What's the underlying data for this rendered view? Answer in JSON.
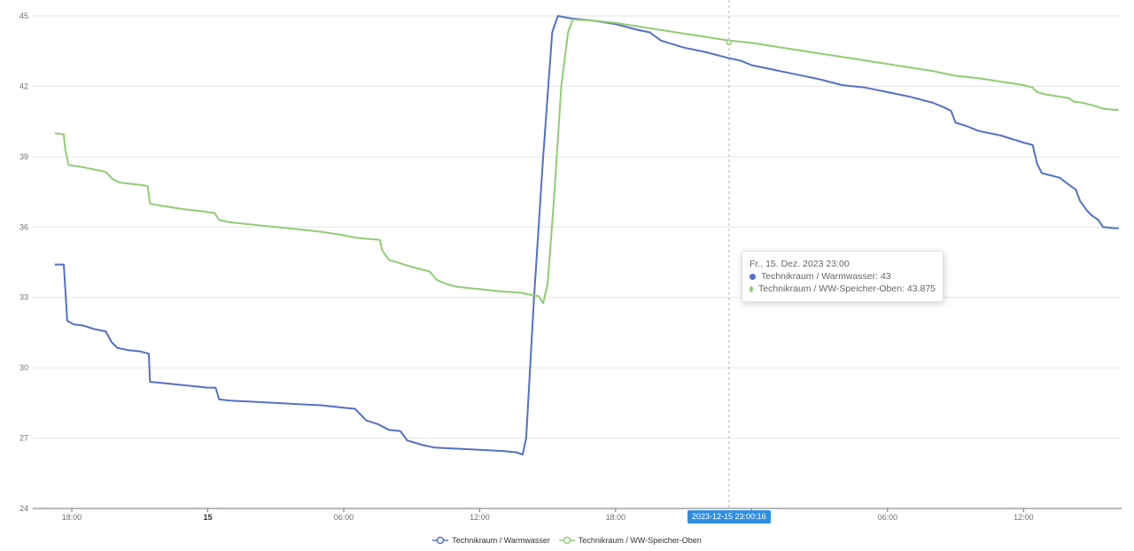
{
  "chart_data": {
    "type": "line",
    "ylim": [
      24,
      45
    ],
    "yticks": [
      24,
      27,
      30,
      33,
      36,
      39,
      42,
      45
    ],
    "xticks": [
      {
        "label": "18:00",
        "bold": false
      },
      {
        "label": "15",
        "bold": true
      },
      {
        "label": "06:00",
        "bold": false
      },
      {
        "label": "12:00",
        "bold": false
      },
      {
        "label": "18:00",
        "bold": false
      },
      {
        "label": "",
        "bold": false
      },
      {
        "label": "06:00",
        "bold": false
      },
      {
        "label": "12:00",
        "bold": false
      }
    ],
    "x_unit": "hours since 2023-12-14 18:00",
    "xlim": [
      -0.75,
      45.5
    ],
    "grid": true,
    "legend_position": "bottom-center",
    "series": [
      {
        "name": "Technikraum / Warmwasser",
        "color": "#5470c6",
        "points": [
          [
            -0.75,
            34.4
          ],
          [
            -0.35,
            34.4
          ],
          [
            -0.3,
            33.6
          ],
          [
            -0.2,
            32.0
          ],
          [
            0.1,
            31.85
          ],
          [
            0.5,
            31.8
          ],
          [
            1.0,
            31.65
          ],
          [
            1.5,
            31.55
          ],
          [
            1.75,
            31.1
          ],
          [
            2.0,
            30.85
          ],
          [
            2.5,
            30.75
          ],
          [
            3.0,
            30.7
          ],
          [
            3.4,
            30.6
          ],
          [
            3.45,
            29.4
          ],
          [
            4.0,
            29.35
          ],
          [
            5.0,
            29.25
          ],
          [
            5.5,
            29.2
          ],
          [
            6.0,
            29.15
          ],
          [
            6.35,
            29.15
          ],
          [
            6.5,
            28.65
          ],
          [
            7.0,
            28.6
          ],
          [
            8.0,
            28.55
          ],
          [
            9.0,
            28.5
          ],
          [
            10.0,
            28.45
          ],
          [
            11.0,
            28.4
          ],
          [
            12.0,
            28.3
          ],
          [
            12.5,
            28.25
          ],
          [
            12.7,
            28.05
          ],
          [
            13.0,
            27.75
          ],
          [
            13.5,
            27.6
          ],
          [
            14.0,
            27.35
          ],
          [
            14.5,
            27.3
          ],
          [
            14.8,
            26.9
          ],
          [
            15.5,
            26.7
          ],
          [
            16.0,
            26.6
          ],
          [
            17.0,
            26.55
          ],
          [
            18.0,
            26.5
          ],
          [
            19.0,
            26.45
          ],
          [
            19.6,
            26.4
          ],
          [
            19.9,
            26.3
          ],
          [
            20.05,
            27.0
          ],
          [
            20.4,
            33.0
          ],
          [
            20.8,
            39.0
          ],
          [
            21.2,
            44.3
          ],
          [
            21.45,
            45.0
          ],
          [
            22.0,
            44.9
          ],
          [
            23.0,
            44.8
          ],
          [
            24.0,
            44.65
          ],
          [
            25.0,
            44.4
          ],
          [
            25.5,
            44.3
          ],
          [
            26.0,
            43.95
          ],
          [
            27.0,
            43.65
          ],
          [
            28.0,
            43.45
          ],
          [
            29.0,
            43.2
          ],
          [
            29.5,
            43.1
          ],
          [
            30.0,
            42.9
          ],
          [
            31.0,
            42.7
          ],
          [
            32.0,
            42.5
          ],
          [
            33.0,
            42.3
          ],
          [
            34.0,
            42.05
          ],
          [
            35.0,
            41.95
          ],
          [
            36.0,
            41.75
          ],
          [
            37.0,
            41.55
          ],
          [
            38.0,
            41.3
          ],
          [
            38.5,
            41.1
          ],
          [
            38.8,
            40.95
          ],
          [
            39.0,
            40.45
          ],
          [
            39.5,
            40.3
          ],
          [
            40.0,
            40.1
          ],
          [
            41.0,
            39.9
          ],
          [
            41.5,
            39.75
          ],
          [
            42.0,
            39.6
          ],
          [
            42.4,
            39.5
          ],
          [
            42.6,
            38.7
          ],
          [
            42.8,
            38.3
          ],
          [
            43.2,
            38.2
          ],
          [
            43.6,
            38.1
          ],
          [
            44.0,
            37.8
          ],
          [
            44.3,
            37.6
          ],
          [
            44.5,
            37.1
          ],
          [
            44.8,
            36.7
          ],
          [
            45.0,
            36.5
          ],
          [
            45.3,
            36.3
          ],
          [
            45.5,
            36.0
          ],
          [
            46.0,
            35.95
          ],
          [
            46.2,
            35.95
          ]
        ]
      },
      {
        "name": "Technikraum / WW-Speicher-Oben",
        "color": "#91cc75",
        "points": [
          [
            -0.75,
            40.0
          ],
          [
            -0.35,
            39.95
          ],
          [
            -0.3,
            39.4
          ],
          [
            -0.15,
            38.65
          ],
          [
            0.5,
            38.55
          ],
          [
            1.0,
            38.45
          ],
          [
            1.5,
            38.35
          ],
          [
            1.8,
            38.05
          ],
          [
            2.1,
            37.9
          ],
          [
            2.5,
            37.85
          ],
          [
            3.0,
            37.8
          ],
          [
            3.35,
            37.75
          ],
          [
            3.45,
            37.0
          ],
          [
            4.0,
            36.9
          ],
          [
            5.0,
            36.75
          ],
          [
            5.5,
            36.7
          ],
          [
            6.3,
            36.6
          ],
          [
            6.5,
            36.3
          ],
          [
            7.0,
            36.2
          ],
          [
            8.0,
            36.1
          ],
          [
            9.0,
            36.0
          ],
          [
            10.0,
            35.9
          ],
          [
            11.0,
            35.8
          ],
          [
            12.0,
            35.65
          ],
          [
            12.5,
            35.55
          ],
          [
            13.0,
            35.5
          ],
          [
            13.6,
            35.45
          ],
          [
            13.7,
            35.0
          ],
          [
            14.0,
            34.6
          ],
          [
            14.5,
            34.45
          ],
          [
            15.0,
            34.3
          ],
          [
            15.8,
            34.1
          ],
          [
            16.1,
            33.75
          ],
          [
            16.6,
            33.55
          ],
          [
            17.0,
            33.45
          ],
          [
            18.0,
            33.35
          ],
          [
            19.0,
            33.25
          ],
          [
            19.8,
            33.2
          ],
          [
            20.3,
            33.1
          ],
          [
            20.6,
            33.05
          ],
          [
            20.8,
            32.75
          ],
          [
            21.0,
            33.6
          ],
          [
            21.3,
            37.5
          ],
          [
            21.6,
            42.0
          ],
          [
            21.9,
            44.3
          ],
          [
            22.1,
            44.85
          ],
          [
            23.0,
            44.8
          ],
          [
            24.0,
            44.7
          ],
          [
            25.0,
            44.55
          ],
          [
            26.0,
            44.4
          ],
          [
            27.0,
            44.25
          ],
          [
            28.0,
            44.1
          ],
          [
            29.0,
            43.95
          ],
          [
            30.0,
            43.85
          ],
          [
            31.0,
            43.7
          ],
          [
            32.0,
            43.55
          ],
          [
            33.0,
            43.4
          ],
          [
            34.0,
            43.25
          ],
          [
            35.0,
            43.1
          ],
          [
            36.0,
            42.95
          ],
          [
            37.0,
            42.8
          ],
          [
            38.0,
            42.65
          ],
          [
            38.5,
            42.55
          ],
          [
            39.0,
            42.45
          ],
          [
            40.0,
            42.35
          ],
          [
            41.0,
            42.2
          ],
          [
            42.0,
            42.05
          ],
          [
            42.4,
            41.95
          ],
          [
            42.6,
            41.75
          ],
          [
            43.0,
            41.65
          ],
          [
            44.0,
            41.5
          ],
          [
            44.2,
            41.35
          ],
          [
            44.6,
            41.3
          ],
          [
            45.0,
            41.2
          ],
          [
            45.5,
            41.05
          ],
          [
            46.0,
            41.0
          ],
          [
            46.2,
            41.0
          ]
        ]
      }
    ],
    "axis_pointer": {
      "x": 29.0,
      "label": "2023-12-15 23:00:16"
    },
    "tooltip": {
      "title": "Fr., 15. Dez. 2023 23:00",
      "rows": [
        {
          "text": "Technikraum / Warmwasser: 43",
          "color": "#5470c6"
        },
        {
          "text": "Technikraum / WW-Speicher-Oben: 43.875",
          "color": "#91cc75"
        }
      ]
    }
  }
}
